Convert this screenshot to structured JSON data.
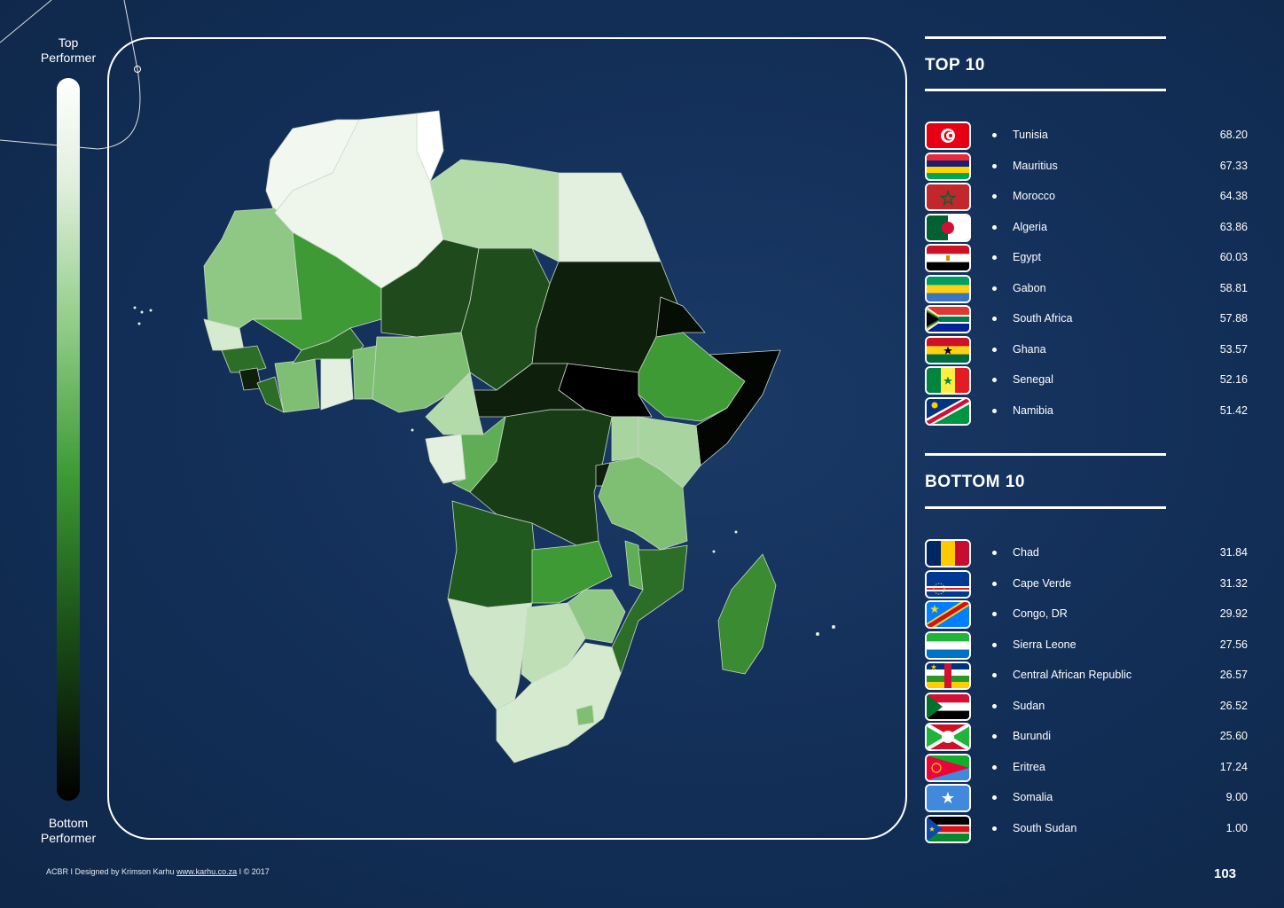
{
  "legend": {
    "top_label": "Top\nPerformer",
    "bottom_label": "Bottom\nPerformer"
  },
  "top10": {
    "title": "TOP 10",
    "items": [
      {
        "name": "Tunisia",
        "value": "68.20",
        "flag": "tunisia-flag-icon"
      },
      {
        "name": "Mauritius",
        "value": "67.33",
        "flag": "mauritius-flag-icon"
      },
      {
        "name": "Morocco",
        "value": "64.38",
        "flag": "morocco-flag-icon"
      },
      {
        "name": "Algeria",
        "value": "63.86",
        "flag": "algeria-flag-icon"
      },
      {
        "name": "Egypt",
        "value": "60.03",
        "flag": "egypt-flag-icon"
      },
      {
        "name": "Gabon",
        "value": "58.81",
        "flag": "gabon-flag-icon"
      },
      {
        "name": "South Africa",
        "value": "57.88",
        "flag": "south-africa-flag-icon"
      },
      {
        "name": "Ghana",
        "value": "53.57",
        "flag": "ghana-flag-icon"
      },
      {
        "name": "Senegal",
        "value": "52.16",
        "flag": "senegal-flag-icon"
      },
      {
        "name": "Namibia",
        "value": "51.42",
        "flag": "namibia-flag-icon"
      }
    ]
  },
  "bottom10": {
    "title": "BOTTOM 10",
    "items": [
      {
        "name": "Chad",
        "value": "31.84",
        "flag": "chad-flag-icon"
      },
      {
        "name": "Cape Verde",
        "value": "31.32",
        "flag": "cape-verde-flag-icon"
      },
      {
        "name": "Congo, DR",
        "value": "29.92",
        "flag": "congo-dr-flag-icon"
      },
      {
        "name": "Sierra Leone",
        "value": "27.56",
        "flag": "sierra-leone-flag-icon"
      },
      {
        "name": "Central African Republic",
        "value": "26.57",
        "flag": "central-african-republic-flag-icon"
      },
      {
        "name": "Sudan",
        "value": "26.52",
        "flag": "sudan-flag-icon"
      },
      {
        "name": "Burundi",
        "value": "25.60",
        "flag": "burundi-flag-icon"
      },
      {
        "name": "Eritrea",
        "value": "17.24",
        "flag": "eritrea-flag-icon"
      },
      {
        "name": "Somalia",
        "value": "9.00",
        "flag": "somalia-flag-icon"
      },
      {
        "name": "South Sudan",
        "value": "1.00",
        "flag": "south-sudan-flag-icon"
      }
    ]
  },
  "footer": {
    "prefix": "ACBR I Designed by Krimson Karhu ",
    "link": "www.karhu.co.za",
    "suffix": " I © 2017"
  },
  "page_number": "103",
  "colors": {
    "background": "#13305a",
    "scale_top": "#ffffff",
    "scale_mid": "#3d9a34",
    "scale_bottom": "#000000"
  }
}
